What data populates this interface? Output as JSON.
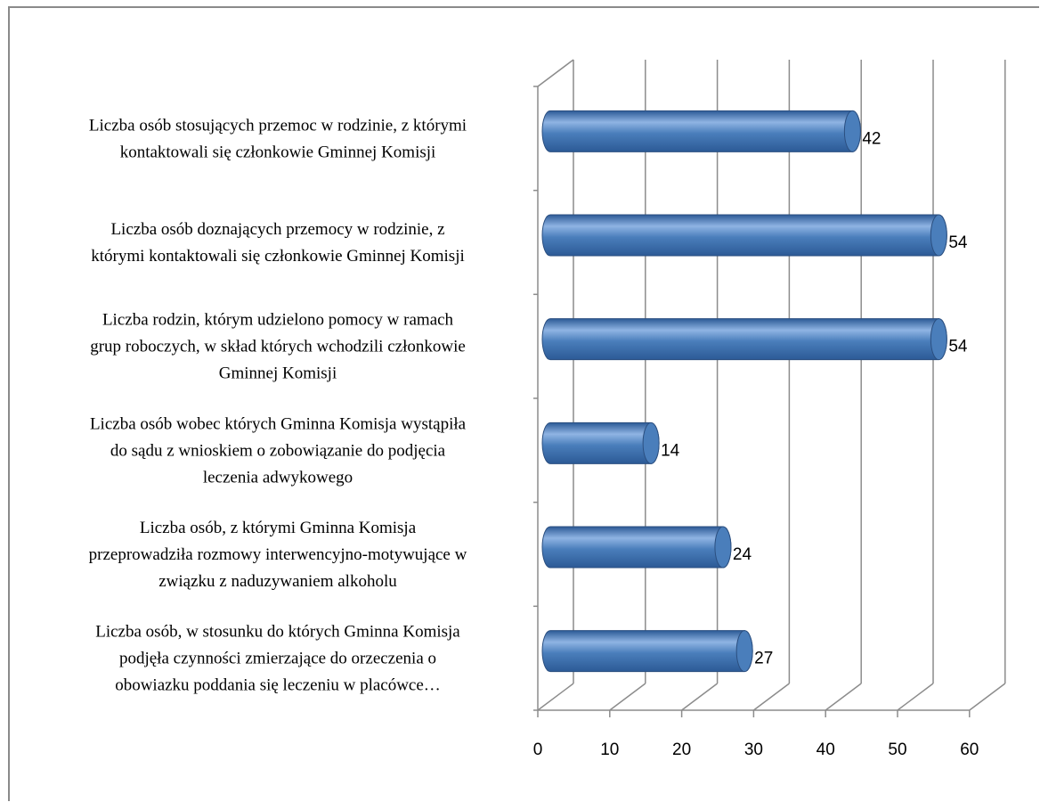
{
  "chart_data": {
    "type": "bar",
    "orientation": "horizontal",
    "style": "3d-cylinder",
    "categories": [
      [
        "Liczba osób stosujących przemoc w rodzinie, z którymi",
        "kontaktowali się członkowie Gminnej Komisji"
      ],
      [
        "Liczba osób doznających przemocy w rodzinie, z",
        "którymi kontaktowali się członkowie Gminnej Komisji"
      ],
      [
        "Liczba rodzin, którym udzielono pomocy w ramach",
        "grup roboczych, w skład których wchodzili członkowie",
        "Gminnej Komisji"
      ],
      [
        "Liczba osób wobec których Gminna Komisja wystąpiła",
        "do sądu z wnioskiem o zobowiązanie do podjęcia",
        "leczenia adwykowego"
      ],
      [
        "Liczba osób, z którymi Gminna Komisja",
        "przeprowadziła rozmowy interwencyjno-motywujące w",
        "związku z naduzywaniem alkoholu"
      ],
      [
        "Liczba osób, w stosunku do których Gminna Komisja",
        "podjęła czynności zmierzające do orzeczenia o",
        "obowiazku poddania się leczeniu w placówce…"
      ]
    ],
    "values": [
      42,
      54,
      54,
      14,
      24,
      27
    ],
    "data_labels": [
      "42",
      "54",
      "54",
      "14",
      "24",
      "27"
    ],
    "xlim": [
      0,
      60
    ],
    "ticks": [
      "0",
      "10",
      "20",
      "30",
      "40",
      "50",
      "60"
    ],
    "grid": true,
    "legend": "none",
    "colors": {
      "bar": "#4a7ebb",
      "bar_dark": "#2c5a96",
      "bar_light": "#8fb4e3",
      "grid": "#8c8c8c"
    }
  }
}
